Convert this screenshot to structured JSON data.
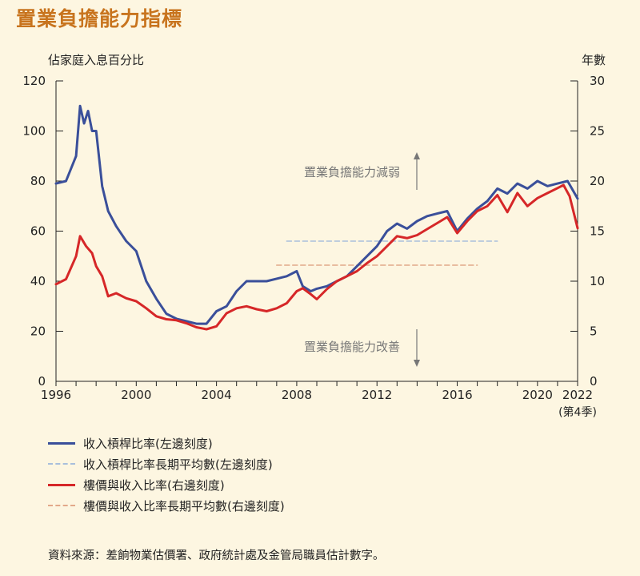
{
  "title": "置業負擔能力指標",
  "source": "資料來源：差餉物業估價署、政府統計處及金管局職員估計數字。",
  "colors": {
    "background": "#fdf6e1",
    "title": "#c8741e",
    "series_blue": "#3a4f9a",
    "series_red": "#d62728",
    "avg_blue": "#a9bfdc",
    "avg_red": "#e2a98a",
    "annotation": "#777777"
  },
  "chart_data": {
    "type": "line",
    "left_axis_label": "佔家庭入息百分比",
    "right_axis_label": "年數",
    "ylim_left": [
      0,
      120
    ],
    "ylim_right": [
      0,
      30
    ],
    "left_ticks": [
      "0",
      "20",
      "40",
      "60",
      "80",
      "100",
      "120"
    ],
    "right_ticks": [
      "0",
      "5",
      "10",
      "15",
      "20",
      "25",
      "30"
    ],
    "xlim": [
      1996,
      2022
    ],
    "x_ticks": [
      "1996",
      "2000",
      "2004",
      "2008",
      "2012",
      "2016",
      "2020",
      "2022"
    ],
    "x_last_note": "(第4季)",
    "annotations": {
      "up": "置業負擔能力減弱",
      "down": "置業負擔能力改善"
    },
    "series": [
      {
        "name": "收入槓桿比率(左邊刻度)",
        "axis": "left",
        "style": "solid",
        "x": [
          1996,
          1996.5,
          1997,
          1997.2,
          1997.4,
          1997.6,
          1997.8,
          1998,
          1998.3,
          1998.6,
          1999,
          1999.5,
          2000,
          2000.5,
          2001,
          2001.5,
          2002,
          2002.5,
          2003,
          2003.5,
          2004,
          2004.5,
          2005,
          2005.5,
          2006,
          2006.5,
          2007,
          2007.5,
          2008,
          2008.3,
          2008.7,
          2009,
          2009.5,
          2010,
          2010.5,
          2011,
          2011.5,
          2012,
          2012.5,
          2013,
          2013.5,
          2014,
          2014.5,
          2015,
          2015.5,
          2016,
          2016.5,
          2017,
          2017.5,
          2018,
          2018.5,
          2019,
          2019.5,
          2020,
          2020.5,
          2021,
          2021.5,
          2022
        ],
        "values": [
          79,
          80,
          90,
          110,
          103,
          108,
          100,
          100,
          78,
          68,
          62,
          56,
          52,
          40,
          33,
          27,
          25,
          24,
          23,
          23,
          28,
          30,
          36,
          40,
          40,
          40,
          41,
          42,
          44,
          38,
          36,
          37,
          38,
          40,
          42,
          46,
          50,
          54,
          60,
          63,
          61,
          64,
          66,
          67,
          68,
          60,
          65,
          69,
          72,
          77,
          75,
          79,
          77,
          80,
          78,
          79,
          80,
          73
        ]
      },
      {
        "name": "收入槓桿比率長期平均數(左邊刻度)",
        "axis": "left",
        "style": "dashed",
        "x": [
          2007.5,
          2018
        ],
        "values": [
          56,
          56
        ]
      },
      {
        "name": "樓價與收入比率(右邊刻度)",
        "axis": "right",
        "style": "solid",
        "x": [
          1996,
          1996.5,
          1997,
          1997.2,
          1997.5,
          1997.8,
          1998,
          1998.3,
          1998.6,
          1999,
          1999.5,
          2000,
          2000.5,
          2001,
          2001.5,
          2002,
          2002.5,
          2003,
          2003.5,
          2004,
          2004.5,
          2005,
          2005.5,
          2006,
          2006.5,
          2007,
          2007.5,
          2008,
          2008.3,
          2008.7,
          2009,
          2009.5,
          2010,
          2010.5,
          2011,
          2011.5,
          2012,
          2012.5,
          2013,
          2013.5,
          2014,
          2014.5,
          2015,
          2015.5,
          2016,
          2016.5,
          2017,
          2017.5,
          2018,
          2018.5,
          2019,
          2019.5,
          2020,
          2020.5,
          2021,
          2021.3,
          2021.6,
          2022
        ],
        "values": [
          9.7,
          10.2,
          12.5,
          14.5,
          13.5,
          12.8,
          11.5,
          10.5,
          8.5,
          8.8,
          8.3,
          8.0,
          7.3,
          6.5,
          6.2,
          6.1,
          5.8,
          5.4,
          5.2,
          5.5,
          6.8,
          7.3,
          7.5,
          7.2,
          7.0,
          7.3,
          7.8,
          9.0,
          9.3,
          8.7,
          8.2,
          9.2,
          10.0,
          10.5,
          11.0,
          11.8,
          12.5,
          13.5,
          14.5,
          14.3,
          14.6,
          15.2,
          15.8,
          16.4,
          14.8,
          16.0,
          17.0,
          17.5,
          18.6,
          16.9,
          18.8,
          17.5,
          18.3,
          18.8,
          19.3,
          19.6,
          18.5,
          15.3
        ]
      },
      {
        "name": "樓價與收入比率長期平均數(右邊刻度)",
        "axis": "right",
        "style": "dashed",
        "x": [
          2007,
          2017
        ],
        "values": [
          11.6,
          11.6
        ]
      }
    ]
  }
}
